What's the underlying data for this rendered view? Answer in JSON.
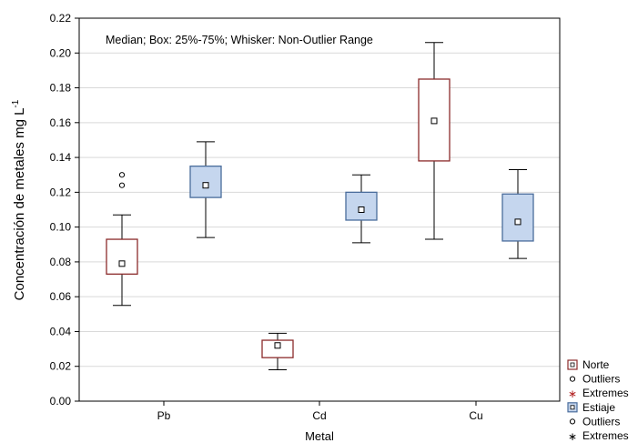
{
  "chart_data": {
    "type": "boxplot",
    "annotation": "Median; Box: 25%-75%; Whisker: Non-Outlier Range",
    "xlabel": "Metal",
    "ylabel": "Concentración de metales mg L",
    "ylabel_sup": "-1",
    "ylim": [
      0,
      0.22
    ],
    "yticks": [
      "0.00",
      "0.02",
      "0.04",
      "0.06",
      "0.08",
      "0.10",
      "0.12",
      "0.14",
      "0.16",
      "0.18",
      "0.20",
      "0.22"
    ],
    "categories": [
      "Pb",
      "Cd",
      "Cu"
    ],
    "grid": true,
    "legend_position": "bottom-right",
    "series": [
      {
        "name": "Norte",
        "color": "#8b2b2b",
        "fill": "#ffffff",
        "boxes": [
          {
            "category": "Pb",
            "whisker_low": 0.055,
            "q1": 0.073,
            "median": 0.079,
            "q3": 0.093,
            "whisker_high": 0.107,
            "outliers": [
              0.124,
              0.13
            ]
          },
          {
            "category": "Cd",
            "whisker_low": 0.018,
            "q1": 0.025,
            "median": 0.032,
            "q3": 0.035,
            "whisker_high": 0.039,
            "outliers": []
          },
          {
            "category": "Cu",
            "whisker_low": 0.093,
            "q1": 0.138,
            "median": 0.161,
            "q3": 0.185,
            "whisker_high": 0.206,
            "outliers": []
          }
        ]
      },
      {
        "name": "Estiaje",
        "color": "#4a6d9c",
        "fill": "#c5d6ee",
        "boxes": [
          {
            "category": "Pb",
            "whisker_low": 0.094,
            "q1": 0.117,
            "median": 0.124,
            "q3": 0.135,
            "whisker_high": 0.149,
            "outliers": []
          },
          {
            "category": "Cd",
            "whisker_low": 0.091,
            "q1": 0.104,
            "median": 0.11,
            "q3": 0.12,
            "whisker_high": 0.13,
            "outliers": []
          },
          {
            "category": "Cu",
            "whisker_low": 0.082,
            "q1": 0.092,
            "median": 0.103,
            "q3": 0.119,
            "whisker_high": 0.133,
            "outliers": []
          }
        ]
      }
    ],
    "legend": [
      {
        "label": "Norte",
        "marker": "box",
        "color": "#8b2b2b",
        "fill": "#ffffff"
      },
      {
        "label": "Outliers",
        "marker": "circle",
        "color": "#000000"
      },
      {
        "label": "Extremes",
        "marker": "star",
        "color": "#b22222"
      },
      {
        "label": "Estiaje",
        "marker": "box",
        "color": "#4a6d9c",
        "fill": "#c5d6ee"
      },
      {
        "label": "Outliers",
        "marker": "circle",
        "color": "#000000"
      },
      {
        "label": "Extremes",
        "marker": "star",
        "color": "#000000"
      }
    ]
  }
}
